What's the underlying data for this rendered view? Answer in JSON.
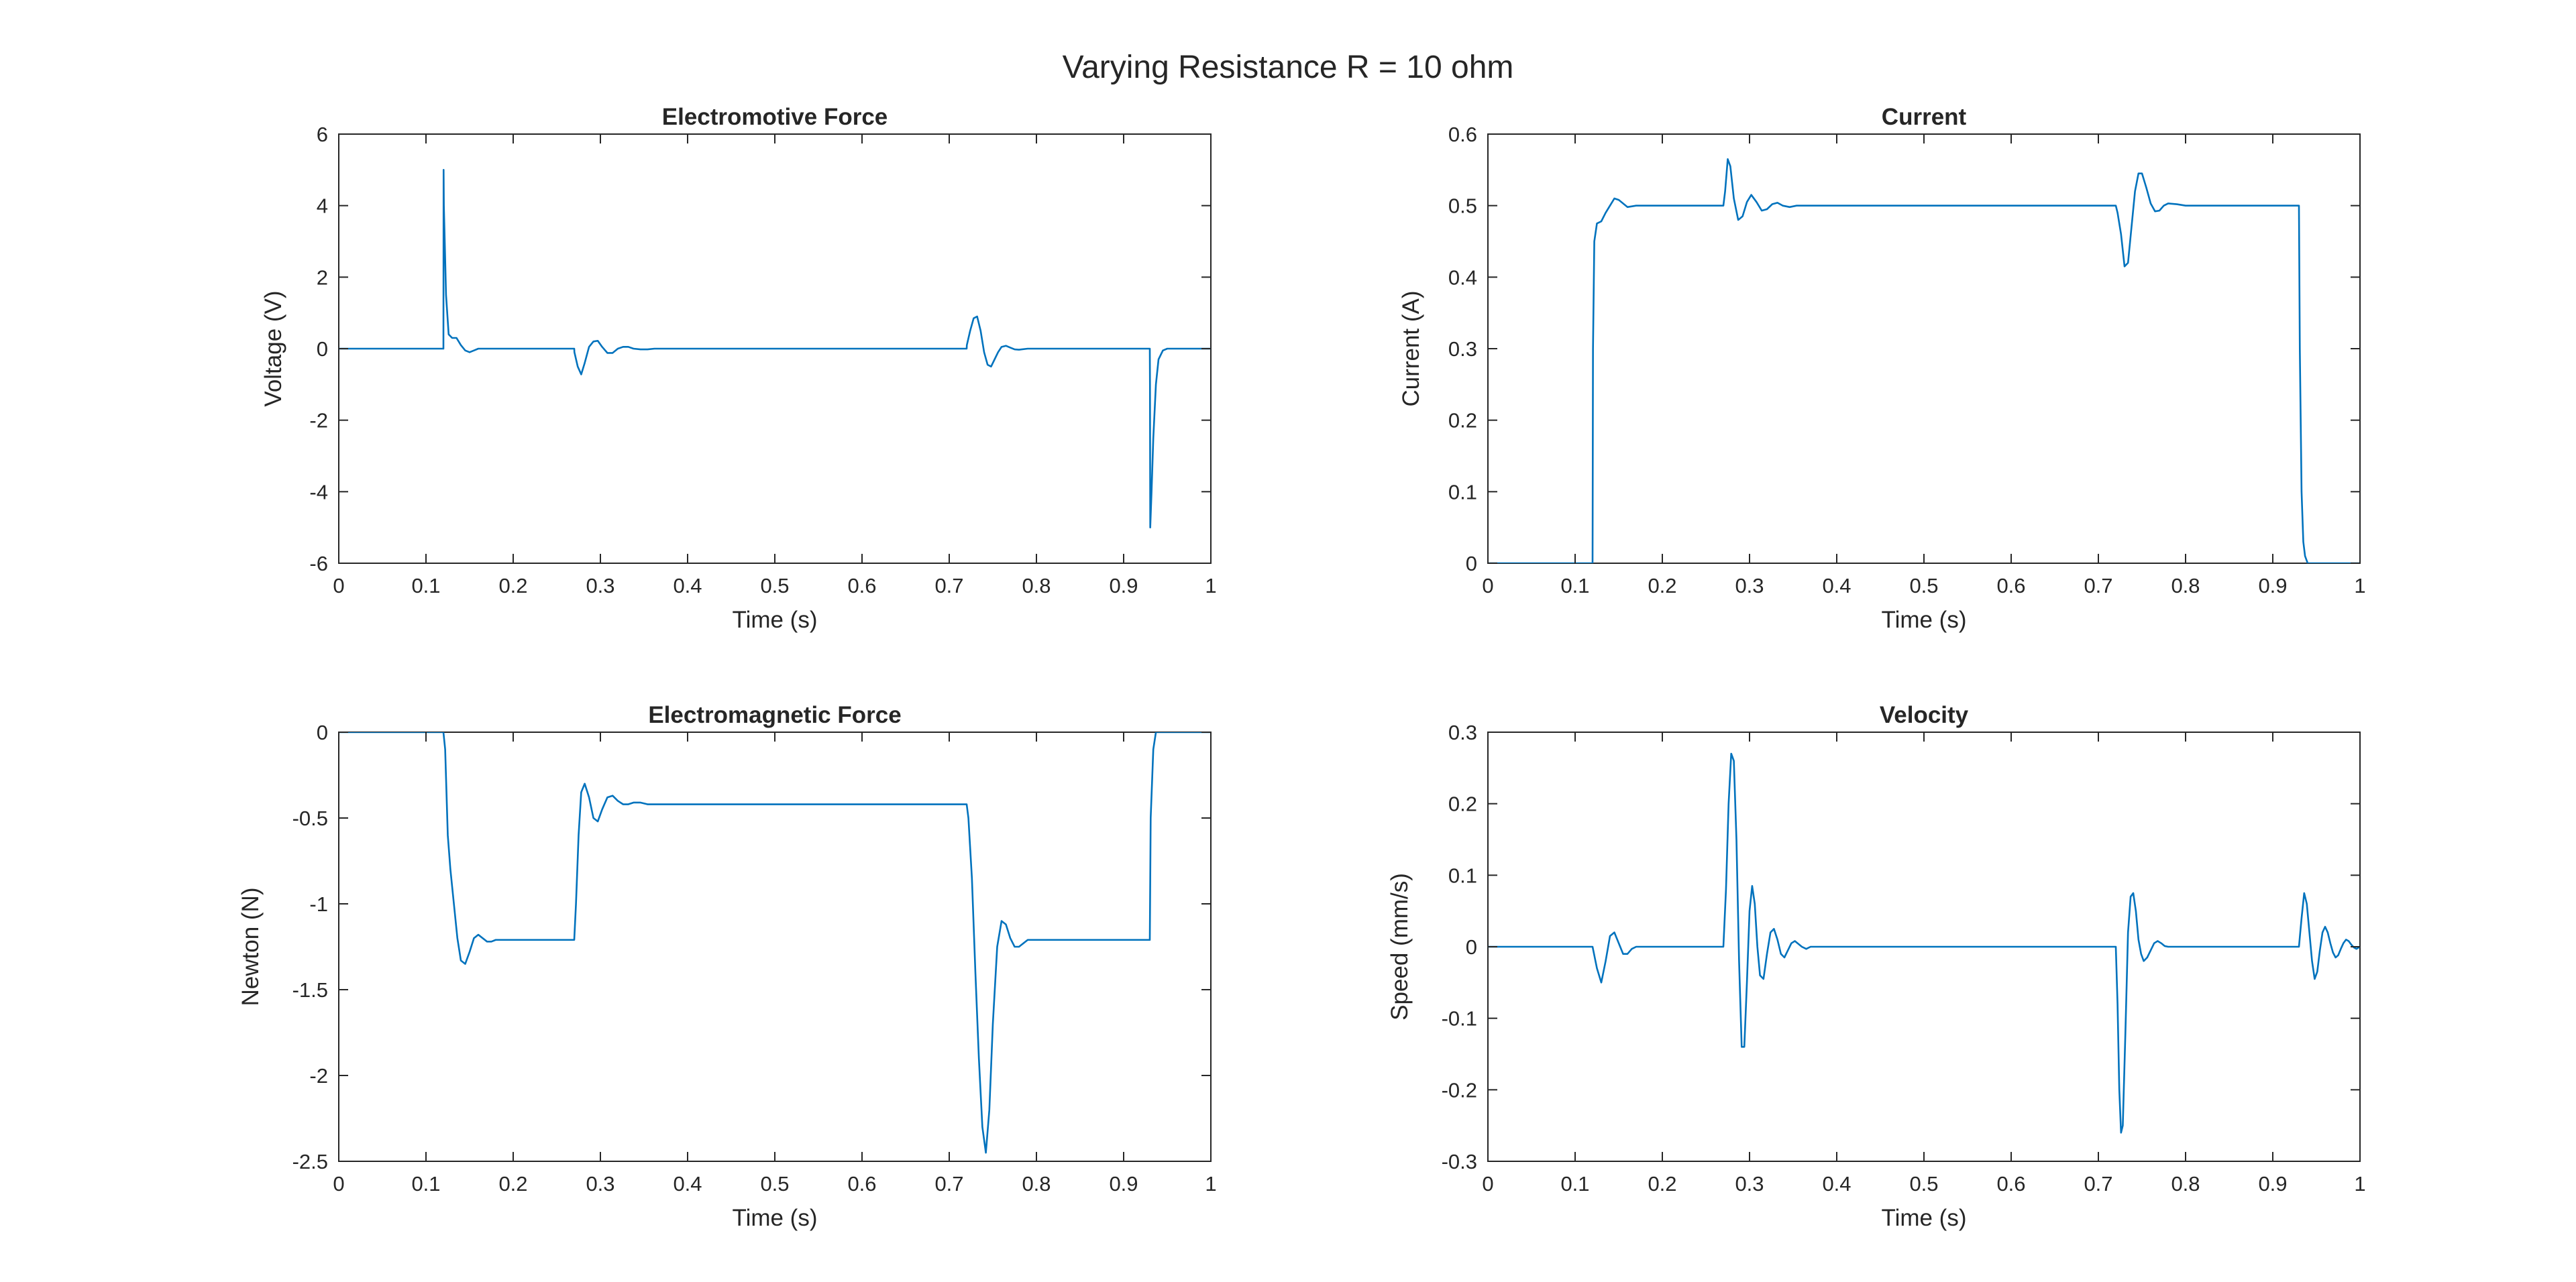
{
  "figure": {
    "title": "Varying Resistance R = 10 ohm"
  },
  "colors": {
    "line": "#0072BD",
    "axes": "#262626",
    "background": "#ffffff"
  },
  "chart_data": [
    {
      "type": "line",
      "title": "Electromotive Force",
      "xlabel": "Time (s)",
      "ylabel": "Voltage (V)",
      "xlim": [
        0,
        1
      ],
      "ylim": [
        -6,
        6
      ],
      "xticks": [
        "0",
        "0.1",
        "0.2",
        "0.3",
        "0.4",
        "0.5",
        "0.6",
        "0.7",
        "0.8",
        "0.9",
        "1"
      ],
      "yticks": [
        "-6",
        "-4",
        "-2",
        "0",
        "2",
        "4",
        "6"
      ],
      "grid": false,
      "series": [
        {
          "x": [
            0,
            0.12,
            0.1202,
            0.1205,
            0.123,
            0.126,
            0.13,
            0.135,
            0.14,
            0.145,
            0.15,
            0.155,
            0.16,
            0.17,
            0.18,
            0.2,
            0.27,
            0.2702,
            0.274,
            0.278,
            0.282,
            0.287,
            0.292,
            0.297,
            0.302,
            0.308,
            0.314,
            0.32,
            0.326,
            0.332,
            0.338,
            0.346,
            0.354,
            0.362,
            0.37,
            0.38,
            0.39,
            0.72,
            0.7202,
            0.724,
            0.728,
            0.732,
            0.736,
            0.74,
            0.744,
            0.748,
            0.752,
            0.756,
            0.76,
            0.765,
            0.77,
            0.775,
            0.78,
            0.79,
            0.8,
            0.81,
            0.93,
            0.9302,
            0.9305,
            0.932,
            0.934,
            0.937,
            0.94,
            0.945,
            0.95,
            1.0
          ],
          "y": [
            0,
            0,
            5.0,
            4.0,
            1.5,
            0.4,
            0.3,
            0.3,
            0.1,
            -0.05,
            -0.1,
            -0.05,
            0,
            0,
            0,
            0,
            0,
            -0.1,
            -0.5,
            -0.72,
            -0.4,
            0.05,
            0.2,
            0.22,
            0.05,
            -0.12,
            -0.12,
            0,
            0.05,
            0.05,
            0,
            -0.02,
            -0.02,
            0,
            0,
            0,
            0,
            0,
            0.1,
            0.5,
            0.85,
            0.9,
            0.5,
            -0.1,
            -0.45,
            -0.5,
            -0.3,
            -0.1,
            0.05,
            0.08,
            0.03,
            -0.02,
            -0.03,
            0,
            0,
            0,
            0,
            -1.0,
            -5.0,
            -4.0,
            -2.5,
            -1.0,
            -0.3,
            -0.05,
            0,
            0
          ]
        }
      ]
    },
    {
      "type": "line",
      "title": "Current",
      "xlabel": "Time (s)",
      "ylabel": "Current (A)",
      "xlim": [
        0,
        1
      ],
      "ylim": [
        0,
        0.6
      ],
      "xticks": [
        "0",
        "0.1",
        "0.2",
        "0.3",
        "0.4",
        "0.5",
        "0.6",
        "0.7",
        "0.8",
        "0.9",
        "1"
      ],
      "yticks": [
        "0",
        "0.1",
        "0.2",
        "0.3",
        "0.4",
        "0.5",
        "0.6"
      ],
      "grid": false,
      "series": [
        {
          "x": [
            0,
            0.12,
            0.1205,
            0.122,
            0.125,
            0.13,
            0.135,
            0.14,
            0.145,
            0.15,
            0.16,
            0.17,
            0.18,
            0.19,
            0.2,
            0.27,
            0.272,
            0.275,
            0.278,
            0.282,
            0.287,
            0.292,
            0.297,
            0.302,
            0.308,
            0.314,
            0.32,
            0.326,
            0.332,
            0.338,
            0.346,
            0.354,
            0.362,
            0.37,
            0.38,
            0.72,
            0.722,
            0.726,
            0.73,
            0.734,
            0.738,
            0.742,
            0.746,
            0.75,
            0.755,
            0.76,
            0.765,
            0.77,
            0.775,
            0.78,
            0.79,
            0.8,
            0.81,
            0.93,
            0.931,
            0.933,
            0.935,
            0.937,
            0.94,
            0.945,
            0.95,
            1.0
          ],
          "y": [
            0,
            0,
            0.3,
            0.45,
            0.475,
            0.478,
            0.49,
            0.5,
            0.51,
            0.508,
            0.498,
            0.5,
            0.5,
            0.5,
            0.5,
            0.5,
            0.52,
            0.565,
            0.555,
            0.51,
            0.48,
            0.485,
            0.505,
            0.515,
            0.505,
            0.493,
            0.495,
            0.502,
            0.504,
            0.5,
            0.498,
            0.5,
            0.5,
            0.5,
            0.5,
            0.5,
            0.49,
            0.46,
            0.415,
            0.42,
            0.47,
            0.52,
            0.545,
            0.545,
            0.525,
            0.503,
            0.492,
            0.493,
            0.5,
            0.503,
            0.502,
            0.5,
            0.5,
            0.5,
            0.3,
            0.1,
            0.03,
            0.01,
            0,
            0,
            0,
            0
          ]
        }
      ]
    },
    {
      "type": "line",
      "title": "Electromagnetic Force",
      "xlabel": "Time (s)",
      "ylabel": "Newton (N)",
      "xlim": [
        0,
        1
      ],
      "ylim": [
        -2.5,
        0
      ],
      "xticks": [
        "0",
        "0.1",
        "0.2",
        "0.3",
        "0.4",
        "0.5",
        "0.6",
        "0.7",
        "0.8",
        "0.9",
        "1"
      ],
      "yticks": [
        "-2.5",
        "-2",
        "-1.5",
        "-1",
        "-0.5",
        "0"
      ],
      "grid": false,
      "series": [
        {
          "x": [
            0,
            0.12,
            0.122,
            0.125,
            0.128,
            0.132,
            0.136,
            0.14,
            0.145,
            0.15,
            0.155,
            0.16,
            0.165,
            0.17,
            0.175,
            0.18,
            0.19,
            0.2,
            0.27,
            0.272,
            0.275,
            0.278,
            0.282,
            0.287,
            0.292,
            0.297,
            0.302,
            0.308,
            0.314,
            0.32,
            0.326,
            0.332,
            0.338,
            0.346,
            0.354,
            0.362,
            0.37,
            0.38,
            0.72,
            0.722,
            0.726,
            0.73,
            0.734,
            0.738,
            0.742,
            0.746,
            0.75,
            0.755,
            0.76,
            0.765,
            0.77,
            0.775,
            0.78,
            0.79,
            0.8,
            0.81,
            0.93,
            0.931,
            0.934,
            0.937,
            0.94,
            0.945,
            1.0
          ],
          "y": [
            0,
            0,
            -0.1,
            -0.6,
            -0.8,
            -1.0,
            -1.2,
            -1.33,
            -1.35,
            -1.28,
            -1.2,
            -1.18,
            -1.2,
            -1.22,
            -1.22,
            -1.21,
            -1.21,
            -1.21,
            -1.21,
            -1.0,
            -0.6,
            -0.35,
            -0.3,
            -0.38,
            -0.5,
            -0.52,
            -0.45,
            -0.38,
            -0.37,
            -0.4,
            -0.42,
            -0.42,
            -0.41,
            -0.41,
            -0.42,
            -0.42,
            -0.42,
            -0.42,
            -0.42,
            -0.5,
            -0.85,
            -1.4,
            -1.9,
            -2.3,
            -2.45,
            -2.2,
            -1.7,
            -1.25,
            -1.1,
            -1.12,
            -1.2,
            -1.25,
            -1.25,
            -1.21,
            -1.21,
            -1.21,
            -1.21,
            -0.5,
            -0.1,
            0,
            0,
            0,
            0
          ]
        }
      ]
    },
    {
      "type": "line",
      "title": "Velocity",
      "xlabel": "Time (s)",
      "ylabel": "Speed (mm/s)",
      "xlim": [
        0,
        1
      ],
      "ylim": [
        -0.3,
        0.3
      ],
      "xticks": [
        "0",
        "0.1",
        "0.2",
        "0.3",
        "0.4",
        "0.5",
        "0.6",
        "0.7",
        "0.8",
        "0.9",
        "1"
      ],
      "yticks": [
        "-0.3",
        "-0.2",
        "-0.1",
        "0",
        "0.1",
        "0.2",
        "0.3"
      ],
      "grid": false,
      "series": [
        {
          "x": [
            0,
            0.12,
            0.125,
            0.13,
            0.135,
            0.14,
            0.145,
            0.15,
            0.155,
            0.16,
            0.165,
            0.17,
            0.18,
            0.19,
            0.2,
            0.27,
            0.273,
            0.276,
            0.279,
            0.282,
            0.285,
            0.288,
            0.291,
            0.294,
            0.297,
            0.3,
            0.303,
            0.306,
            0.309,
            0.312,
            0.316,
            0.32,
            0.324,
            0.328,
            0.332,
            0.336,
            0.34,
            0.344,
            0.348,
            0.352,
            0.356,
            0.36,
            0.365,
            0.37,
            0.38,
            0.39,
            0.72,
            0.722,
            0.724,
            0.726,
            0.728,
            0.731,
            0.734,
            0.737,
            0.74,
            0.743,
            0.746,
            0.749,
            0.752,
            0.756,
            0.76,
            0.764,
            0.768,
            0.772,
            0.776,
            0.78,
            0.79,
            0.8,
            0.81,
            0.93,
            0.933,
            0.936,
            0.939,
            0.942,
            0.945,
            0.948,
            0.951,
            0.954,
            0.957,
            0.96,
            0.963,
            0.966,
            0.969,
            0.972,
            0.975,
            0.978,
            0.981,
            0.984,
            0.987,
            0.99,
            0.993,
            0.996,
            1.0
          ],
          "y": [
            0,
            0,
            -0.03,
            -0.05,
            -0.02,
            0.015,
            0.02,
            0.005,
            -0.01,
            -0.01,
            -0.003,
            0,
            0,
            0,
            0,
            0,
            0.08,
            0.2,
            0.27,
            0.26,
            0.15,
            -0.02,
            -0.14,
            -0.14,
            -0.05,
            0.05,
            0.085,
            0.06,
            0.0,
            -0.04,
            -0.045,
            -0.01,
            0.02,
            0.025,
            0.01,
            -0.01,
            -0.015,
            -0.005,
            0.005,
            0.008,
            0.004,
            0,
            -0.003,
            0,
            0,
            0,
            0,
            -0.08,
            -0.2,
            -0.26,
            -0.25,
            -0.12,
            0.02,
            0.07,
            0.075,
            0.05,
            0.01,
            -0.01,
            -0.02,
            -0.015,
            -0.005,
            0.005,
            0.008,
            0.005,
            0.001,
            0,
            0,
            0,
            0,
            0,
            0.04,
            0.075,
            0.06,
            0.02,
            -0.02,
            -0.045,
            -0.035,
            -0.005,
            0.02,
            0.028,
            0.02,
            0.005,
            -0.008,
            -0.015,
            -0.012,
            -0.003,
            0.005,
            0.01,
            0.008,
            0.003,
            -0.001,
            -0.003,
            0
          ]
        }
      ]
    }
  ]
}
